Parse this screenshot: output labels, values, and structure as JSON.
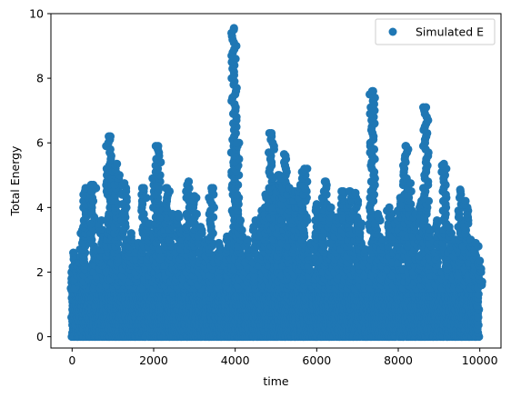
{
  "chart_data": {
    "type": "scatter",
    "xlabel": "time",
    "ylabel": "Total Energy",
    "xlim": [
      -520,
      10520
    ],
    "ylim": [
      -0.35,
      10
    ],
    "xticks": [
      0,
      2000,
      4000,
      6000,
      8000,
      10000
    ],
    "yticks": [
      0,
      2,
      4,
      6,
      8,
      10
    ],
    "grid": false,
    "legend": {
      "placement": "top-right",
      "entries": [
        "Simulated E"
      ]
    },
    "series": [
      {
        "name": "Simulated E",
        "color": "#1f77b4",
        "marker": "circle",
        "x_range": [
          0,
          10000
        ],
        "y_base_max": 2.6,
        "spikes": [
          {
            "x": 30,
            "y": 2.6
          },
          {
            "x": 120,
            "y": 2.2
          },
          {
            "x": 250,
            "y": 3.3
          },
          {
            "x": 330,
            "y": 4.6
          },
          {
            "x": 520,
            "y": 4.7
          },
          {
            "x": 600,
            "y": 2.7
          },
          {
            "x": 720,
            "y": 3.6
          },
          {
            "x": 900,
            "y": 6.2
          },
          {
            "x": 1000,
            "y": 5.1
          },
          {
            "x": 1100,
            "y": 5.35
          },
          {
            "x": 1280,
            "y": 4.75
          },
          {
            "x": 1450,
            "y": 3.2
          },
          {
            "x": 1620,
            "y": 2.9
          },
          {
            "x": 1760,
            "y": 4.6
          },
          {
            "x": 1900,
            "y": 3.5
          },
          {
            "x": 2040,
            "y": 4.9
          },
          {
            "x": 2110,
            "y": 5.9
          },
          {
            "x": 2220,
            "y": 3.9
          },
          {
            "x": 2330,
            "y": 4.6
          },
          {
            "x": 2460,
            "y": 3.8
          },
          {
            "x": 2600,
            "y": 3.8
          },
          {
            "x": 2720,
            "y": 3.3
          },
          {
            "x": 2860,
            "y": 4.8
          },
          {
            "x": 3000,
            "y": 4.35
          },
          {
            "x": 3150,
            "y": 3.4
          },
          {
            "x": 3300,
            "y": 3.0
          },
          {
            "x": 3420,
            "y": 4.6
          },
          {
            "x": 3600,
            "y": 2.9
          },
          {
            "x": 3800,
            "y": 3.1
          },
          {
            "x": 3970,
            "y": 9.55
          },
          {
            "x": 4040,
            "y": 6.0
          },
          {
            "x": 4130,
            "y": 3.6
          },
          {
            "x": 4300,
            "y": 3.0
          },
          {
            "x": 4500,
            "y": 3.6
          },
          {
            "x": 4650,
            "y": 3.9
          },
          {
            "x": 4780,
            "y": 4.4
          },
          {
            "x": 4890,
            "y": 6.3
          },
          {
            "x": 4990,
            "y": 4.6
          },
          {
            "x": 5080,
            "y": 5.0
          },
          {
            "x": 5200,
            "y": 5.65
          },
          {
            "x": 5330,
            "y": 4.6
          },
          {
            "x": 5470,
            "y": 4.5
          },
          {
            "x": 5600,
            "y": 4.7
          },
          {
            "x": 5700,
            "y": 5.2
          },
          {
            "x": 5850,
            "y": 2.9
          },
          {
            "x": 6000,
            "y": 4.1
          },
          {
            "x": 6150,
            "y": 4.1
          },
          {
            "x": 6200,
            "y": 4.8
          },
          {
            "x": 6350,
            "y": 4.0
          },
          {
            "x": 6500,
            "y": 3.7
          },
          {
            "x": 6650,
            "y": 4.5
          },
          {
            "x": 6800,
            "y": 4.5
          },
          {
            "x": 6950,
            "y": 4.45
          },
          {
            "x": 7100,
            "y": 3.5
          },
          {
            "x": 7200,
            "y": 2.7
          },
          {
            "x": 7360,
            "y": 7.6
          },
          {
            "x": 7500,
            "y": 3.8
          },
          {
            "x": 7620,
            "y": 3.0
          },
          {
            "x": 7780,
            "y": 4.0
          },
          {
            "x": 7920,
            "y": 3.5
          },
          {
            "x": 8050,
            "y": 4.3
          },
          {
            "x": 8180,
            "y": 5.9
          },
          {
            "x": 8300,
            "y": 4.75
          },
          {
            "x": 8420,
            "y": 3.8
          },
          {
            "x": 8570,
            "y": 4.2
          },
          {
            "x": 8680,
            "y": 7.1
          },
          {
            "x": 8800,
            "y": 3.3
          },
          {
            "x": 8950,
            "y": 3.6
          },
          {
            "x": 9120,
            "y": 5.35
          },
          {
            "x": 9250,
            "y": 3.4
          },
          {
            "x": 9400,
            "y": 3.0
          },
          {
            "x": 9520,
            "y": 4.55
          },
          {
            "x": 9650,
            "y": 4.2
          },
          {
            "x": 9780,
            "y": 3.0
          },
          {
            "x": 9900,
            "y": 2.9
          },
          {
            "x": 10000,
            "y": 2.35
          }
        ]
      }
    ]
  }
}
